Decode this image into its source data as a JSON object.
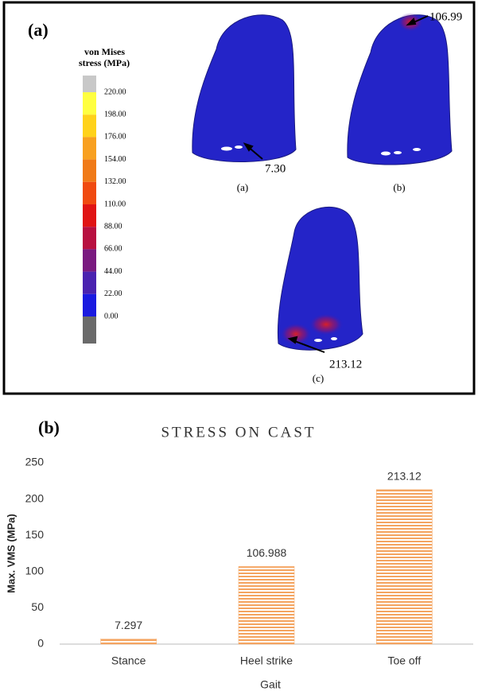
{
  "panel_a": {
    "label": "(a)",
    "legend_title": [
      "von Mises",
      "stress (MPa)"
    ],
    "colorbar": {
      "ticks": [
        {
          "value": 220,
          "label": "220.00"
        },
        {
          "value": 198,
          "label": "198.00"
        },
        {
          "value": 176,
          "label": "176.00"
        },
        {
          "value": 154,
          "label": "154.00"
        },
        {
          "value": 132,
          "label": "132.00"
        },
        {
          "value": 110,
          "label": "110.00"
        },
        {
          "value": 88,
          "label": "88.00"
        },
        {
          "value": 66,
          "label": "66.00"
        },
        {
          "value": 44,
          "label": "44.00"
        },
        {
          "value": 22,
          "label": "22.00"
        },
        {
          "value": 0,
          "label": "0.00"
        }
      ],
      "band_colors": [
        "#ffff40",
        "#ffd21a",
        "#f8a020",
        "#f07a18",
        "#f04a10",
        "#e01414",
        "#b81040",
        "#7a1a80",
        "#4a22b0",
        "#1a1ae0"
      ],
      "over_color": "#c8c8c8",
      "under_color": "#6a6a6a"
    },
    "annotations": [
      "7.30",
      "106.99",
      "213.12"
    ],
    "captions": [
      "(a)",
      "(b)",
      "(c)"
    ]
  },
  "chart_data": {
    "type": "bar",
    "panel_label": "(b)",
    "title": "STRESS ON CAST",
    "x_label": "Gait",
    "y_label": "Max. VMS (MPa)",
    "categories": [
      "Stance",
      "Heel strike",
      "Toe off"
    ],
    "values": [
      7.297,
      106.988,
      213.12
    ],
    "color": "#f4a460",
    "ylim": [
      0,
      250
    ],
    "yticks": [
      0,
      50,
      100,
      150,
      200,
      250
    ],
    "grid": false
  }
}
